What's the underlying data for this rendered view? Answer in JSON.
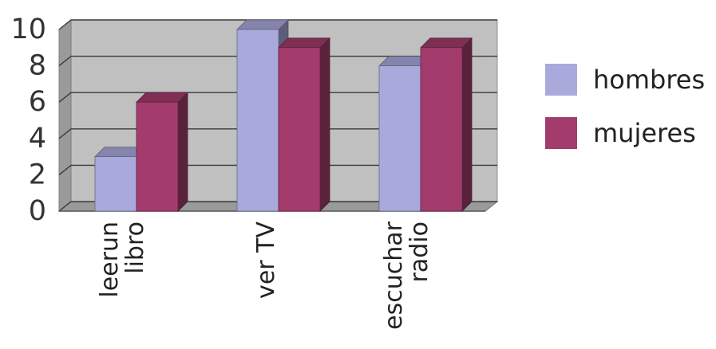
{
  "chart_data": {
    "type": "bar",
    "style": "3d-clustered-column",
    "categories": [
      [
        "leerun",
        "libro"
      ],
      [
        "ver TV"
      ],
      [
        "escuchar",
        "radio"
      ]
    ],
    "series": [
      {
        "name": "hombres",
        "values": [
          3,
          10,
          8
        ],
        "color": "#a9a9dc"
      },
      {
        "name": "mujeres",
        "values": [
          6,
          9,
          9
        ],
        "color": "#a33c6c"
      }
    ],
    "ylim": [
      0,
      10
    ],
    "yticks": [
      0,
      2,
      4,
      6,
      8,
      10
    ],
    "grid": true,
    "legend": "right",
    "title": "",
    "xlabel": "",
    "ylabel": ""
  }
}
